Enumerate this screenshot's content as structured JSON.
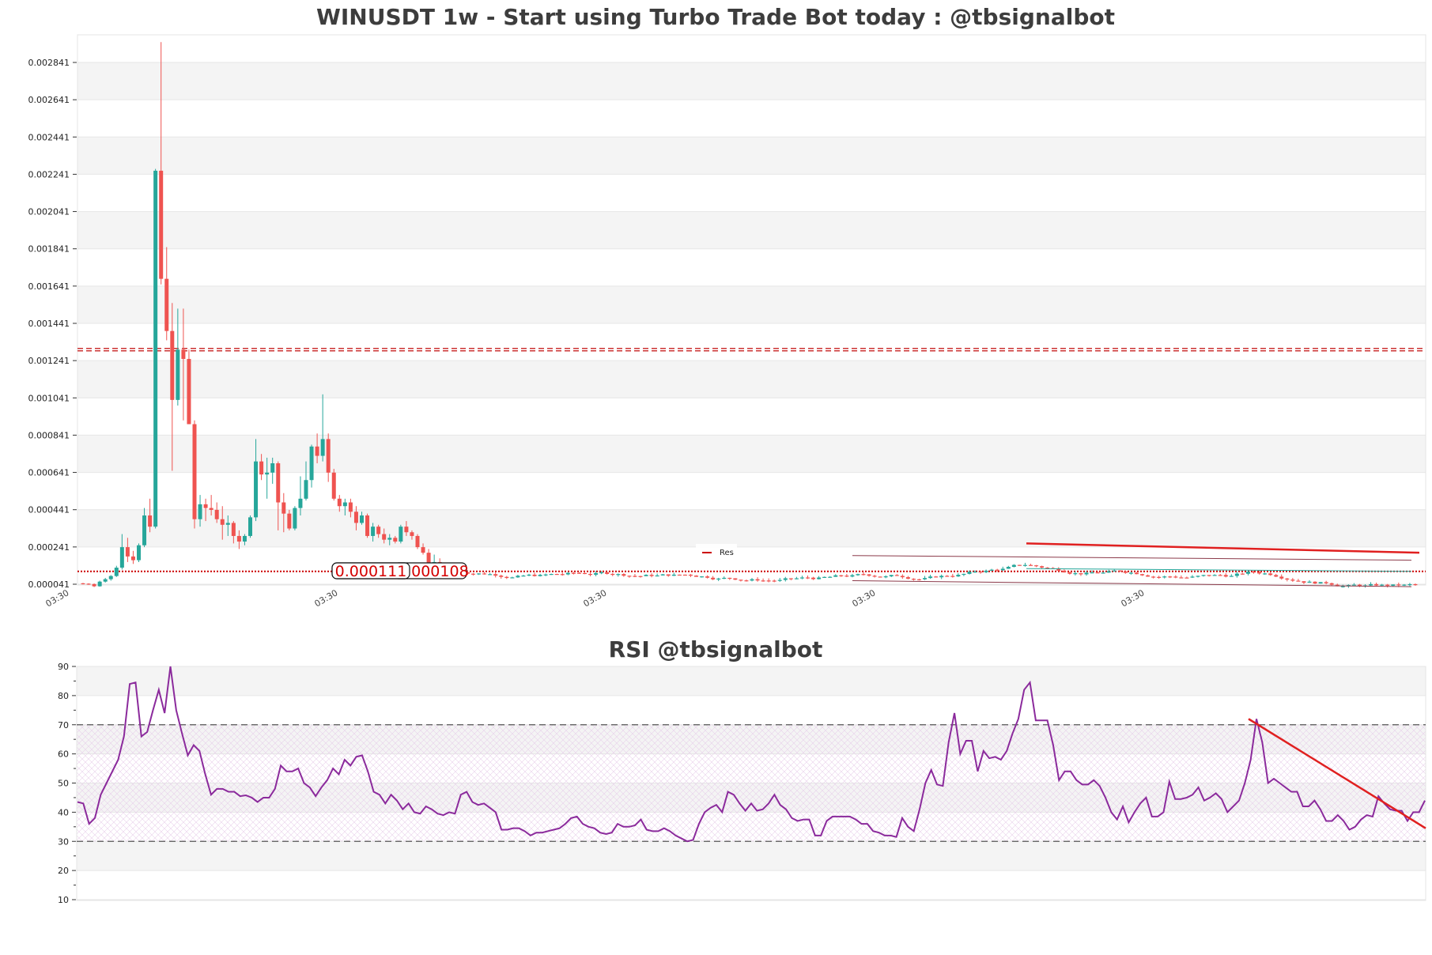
{
  "chart_data": [
    {
      "type": "candlestick",
      "title": "WINUSDT 1w - Start using Turbo Trade Bot today : @tbsignalbot",
      "y_ticks": [
        "0.000041",
        "0.000241",
        "0.000441",
        "0.000641",
        "0.000841",
        "0.001041",
        "0.001241",
        "0.001441",
        "0.001641",
        "0.001841",
        "0.002041",
        "0.002241",
        "0.002441",
        "0.002641",
        "0.002841"
      ],
      "y_tick_values": [
        4.1e-05,
        0.000241,
        0.000441,
        0.000641,
        0.000841,
        0.001041,
        0.001241,
        0.001441,
        0.001641,
        0.001841,
        0.002041,
        0.002241,
        0.002441,
        0.002641,
        0.002841
      ],
      "ylim": [
        4.1e-05,
        0.003
      ],
      "x_tick_labels": [
        "03:30",
        "03:30",
        "03:30",
        "03:30",
        "03:30"
      ],
      "legend": [
        {
          "name": "Res",
          "color": "#cc0000"
        }
      ],
      "legend_position": "center",
      "resistance_level": 0.0013,
      "support_level": 0.00011,
      "price_labels": [
        "0.000111",
        "0.000108"
      ],
      "grid": true,
      "colors": {
        "up": "#26a69a",
        "down": "#ef5350",
        "resistance": "#cc3333",
        "support": "#cc0000",
        "trend": "#e02020"
      },
      "candles": [
        [
          4.6e-05,
          4.8e-05,
          4e-05,
          4.4e-05
        ],
        [
          4.4e-05,
          4.6e-05,
          3.8e-05,
          4.2e-05
        ],
        [
          4.2e-05,
          4.5e-05,
          2.6e-05,
          3e-05
        ],
        [
          3e-05,
          6e-05,
          2.8e-05,
          5.5e-05
        ],
        [
          5.5e-05,
          7.5e-05,
          5e-05,
          6.8e-05
        ],
        [
          6.8e-05,
          9e-05,
          6e-05,
          8.5e-05
        ],
        [
          8.5e-05,
          0.00014,
          8e-05,
          0.00013
        ],
        [
          0.00013,
          0.00031,
          0.00012,
          0.00024
        ],
        [
          0.00024,
          0.00029,
          0.00016,
          0.00019
        ],
        [
          0.00019,
          0.00022,
          0.00015,
          0.00017
        ],
        [
          0.00017,
          0.00026,
          0.00016,
          0.00025
        ],
        [
          0.00025,
          0.00045,
          0.00024,
          0.00041
        ],
        [
          0.00041,
          0.0005,
          0.00032,
          0.00035
        ],
        [
          0.00035,
          0.00227,
          0.00034,
          0.00226
        ],
        [
          0.00226,
          0.00295,
          0.00165,
          0.00168
        ],
        [
          0.00168,
          0.00185,
          0.00135,
          0.0014
        ],
        [
          0.0014,
          0.00155,
          0.00065,
          0.00103
        ],
        [
          0.00103,
          0.00152,
          0.001,
          0.0013
        ],
        [
          0.0013,
          0.00152,
          0.00092,
          0.00125
        ],
        [
          0.00125,
          0.0013,
          0.0009,
          0.0009
        ],
        [
          0.0009,
          0.00092,
          0.00034,
          0.00039
        ],
        [
          0.00039,
          0.00052,
          0.00035,
          0.00047
        ],
        [
          0.00047,
          0.0005,
          0.00038,
          0.00045
        ],
        [
          0.00045,
          0.00052,
          0.00041,
          0.00044
        ],
        [
          0.00044,
          0.00048,
          0.00037,
          0.00039
        ],
        [
          0.00039,
          0.00046,
          0.00028,
          0.00036
        ],
        [
          0.00036,
          0.00041,
          0.0003,
          0.00037
        ],
        [
          0.00037,
          0.00038,
          0.00026,
          0.0003
        ],
        [
          0.0003,
          0.00033,
          0.00023,
          0.00027
        ],
        [
          0.00027,
          0.00031,
          0.00025,
          0.0003
        ],
        [
          0.0003,
          0.00041,
          0.00029,
          0.0004
        ],
        [
          0.0004,
          0.00082,
          0.00038,
          0.0007
        ],
        [
          0.0007,
          0.00074,
          0.0006,
          0.00063
        ],
        [
          0.00063,
          0.00072,
          0.0005,
          0.00064
        ],
        [
          0.00064,
          0.00072,
          0.00058,
          0.00069
        ],
        [
          0.00069,
          0.0007,
          0.00033,
          0.00048
        ],
        [
          0.00048,
          0.00053,
          0.00032,
          0.00042
        ],
        [
          0.00042,
          0.00044,
          0.00033,
          0.00034
        ],
        [
          0.00034,
          0.00046,
          0.00033,
          0.00045
        ],
        [
          0.00045,
          0.00062,
          0.00041,
          0.0005
        ],
        [
          0.0005,
          0.0007,
          0.00049,
          0.0006
        ],
        [
          0.0006,
          0.00079,
          0.00056,
          0.00078
        ],
        [
          0.00078,
          0.00085,
          0.00069,
          0.00073
        ],
        [
          0.00073,
          0.00106,
          0.0007,
          0.00082
        ],
        [
          0.00082,
          0.00085,
          0.00059,
          0.00064
        ],
        [
          0.00064,
          0.00066,
          0.00049,
          0.0005
        ],
        [
          0.0005,
          0.00052,
          0.00043,
          0.00046
        ],
        [
          0.00046,
          0.0005,
          0.00041,
          0.00048
        ],
        [
          0.00048,
          0.0005,
          0.0004,
          0.00043
        ],
        [
          0.00043,
          0.00046,
          0.00033,
          0.00037
        ],
        [
          0.00037,
          0.00043,
          0.00036,
          0.00041
        ],
        [
          0.00041,
          0.00042,
          0.00029,
          0.0003
        ],
        [
          0.0003,
          0.00037,
          0.00027,
          0.00035
        ],
        [
          0.00035,
          0.00036,
          0.00029,
          0.00031
        ],
        [
          0.00031,
          0.00034,
          0.00026,
          0.00028
        ],
        [
          0.00028,
          0.00031,
          0.00025,
          0.00029
        ],
        [
          0.00029,
          0.0003,
          0.00026,
          0.00027
        ],
        [
          0.00027,
          0.00036,
          0.00026,
          0.00035
        ],
        [
          0.00035,
          0.00038,
          0.0003,
          0.00032
        ],
        [
          0.00032,
          0.00033,
          0.00028,
          0.0003
        ],
        [
          0.0003,
          0.00031,
          0.00023,
          0.00024
        ],
        [
          0.00024,
          0.00026,
          0.0002,
          0.00021
        ],
        [
          0.00021,
          0.00023,
          0.00014,
          0.00015
        ],
        [
          0.00015,
          0.0002,
          0.00013,
          0.00016
        ],
        [
          0.00016,
          0.00018,
          0.00012,
          0.00013
        ],
        [
          0.00013,
          0.00015,
          0.00011,
          0.000115
        ],
        [
          0.000115,
          0.00013,
          0.0001,
          0.00011
        ]
      ],
      "trend_lines": [
        {
          "from": [
            0.00026
          ],
          "to": [
            0.00021
          ]
        },
        {
          "from": [
            0.000195
          ],
          "to": [
            0.00017
          ]
        },
        {
          "from": [
            6e-05
          ],
          "to": [
            2.8e-05
          ]
        }
      ]
    },
    {
      "type": "line",
      "title": "RSI @tbsignalbot",
      "y_ticks": [
        "10",
        "20",
        "30",
        "40",
        "50",
        "60",
        "70",
        "80",
        "90"
      ],
      "y_tick_values": [
        10,
        20,
        30,
        40,
        50,
        60,
        70,
        80,
        90
      ],
      "ylim": [
        10,
        90
      ],
      "overbought": 70,
      "oversold": 30,
      "colors": {
        "line": "#8b2a9c",
        "trend": "#e02020"
      },
      "series": [
        {
          "values": [
            43.5,
            43,
            36,
            38,
            46,
            50,
            54,
            58,
            66,
            84,
            84.5,
            66,
            67.5,
            75,
            82,
            74,
            90,
            75,
            67,
            59.5,
            63,
            61,
            53,
            46,
            48,
            48,
            47,
            47,
            45.5,
            45.8,
            45,
            43.5,
            45,
            45,
            48,
            56,
            54,
            54,
            55,
            50,
            48.5,
            45.5,
            48.5,
            51,
            55,
            53,
            58,
            56,
            59,
            59.5,
            54,
            47,
            46,
            43,
            46,
            44,
            41,
            43,
            40,
            39.5,
            42,
            41,
            39.5,
            39,
            40,
            39.5,
            46,
            47,
            43.5,
            42.5,
            43,
            41.5,
            40,
            34,
            34,
            34.5,
            34.5,
            33.5,
            32,
            33,
            33,
            33.5,
            34,
            34.5,
            36,
            38,
            38.5,
            36,
            35,
            34.5,
            33,
            32.5,
            33,
            36,
            35,
            35,
            35.5,
            37.5,
            34,
            33.5,
            33.5,
            34.5,
            33.5,
            32,
            31,
            30,
            30.5,
            36,
            40,
            41.5,
            42.5,
            40,
            47,
            46,
            43,
            40.5,
            43,
            40.5,
            41,
            43,
            46,
            42.5,
            41,
            38,
            37,
            37.5,
            37.5,
            32,
            32,
            37,
            38.5,
            38.5,
            38.5,
            38.5,
            37.5,
            36,
            36,
            33.5,
            33,
            32,
            32,
            31.5,
            38,
            35,
            33.5,
            41,
            50,
            54.5,
            49.5,
            49,
            64,
            74,
            60,
            64.5,
            64.5,
            54,
            61,
            58.5,
            59,
            58,
            61,
            67,
            72,
            82,
            84.5,
            71.5,
            71.5,
            71.5,
            63,
            51,
            54,
            54,
            51,
            49.5,
            49.5,
            51,
            49,
            45,
            40,
            37.5,
            42,
            36.5,
            40,
            43,
            45,
            38.5,
            38.5,
            40,
            50.5,
            44.5,
            44.5,
            45,
            46,
            48.5,
            44,
            45,
            46.5,
            44.5,
            40,
            42,
            44,
            50,
            58,
            72,
            64,
            50,
            51.5,
            50,
            48.5,
            47,
            47,
            42,
            42,
            44,
            41,
            37,
            37,
            39,
            37,
            34,
            35,
            37.5,
            39,
            38.5,
            45.5,
            43,
            41,
            40.5,
            40.5,
            37,
            40,
            40,
            44
          ]
        }
      ],
      "trend_line": {
        "from": 72,
        "to": 34.5
      }
    }
  ]
}
